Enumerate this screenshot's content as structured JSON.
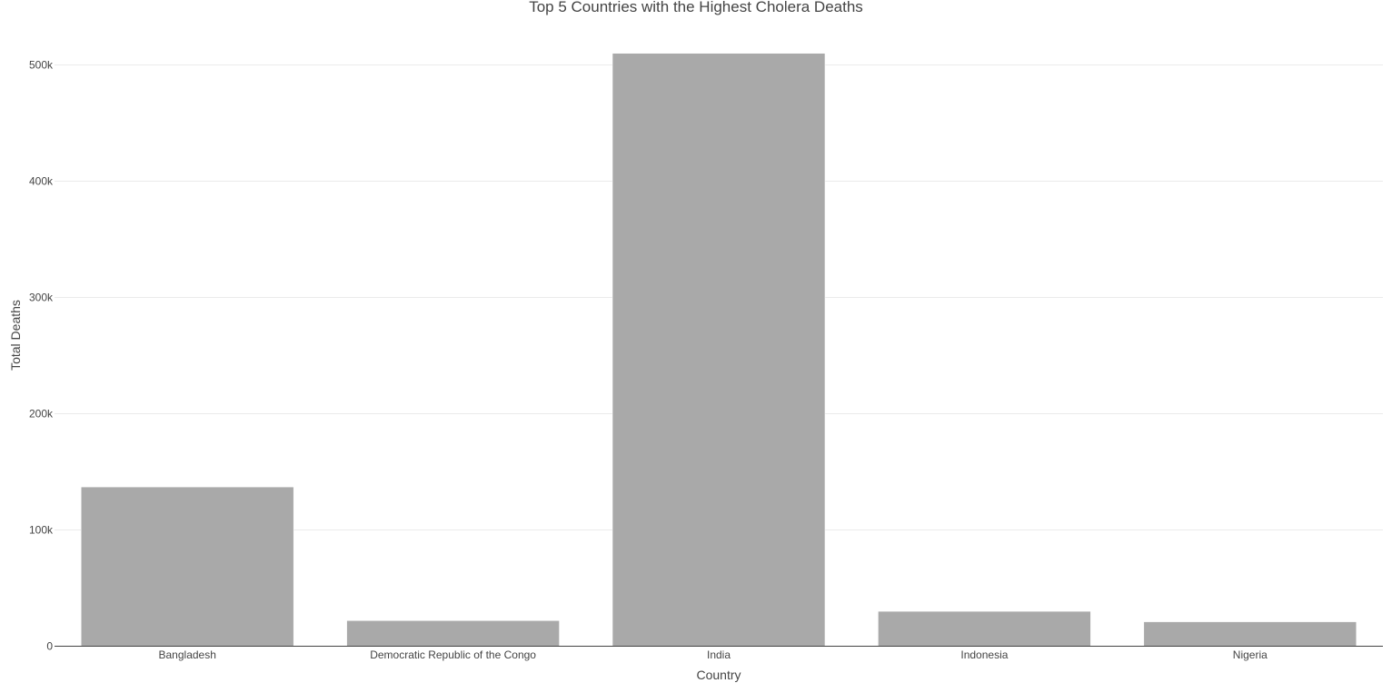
{
  "chart_data": {
    "type": "bar",
    "title": "Top 5 Countries with the Highest Cholera Deaths",
    "xlabel": "Country",
    "ylabel": "Total Deaths",
    "categories": [
      "Bangladesh",
      "Democratic Republic of the Congo",
      "India",
      "Indonesia",
      "Nigeria"
    ],
    "values": [
      137000,
      22000,
      510000,
      30000,
      21000
    ],
    "ylim": [
      0,
      525000
    ],
    "yticks": [
      0,
      100000,
      200000,
      300000,
      400000,
      500000
    ],
    "ytick_labels": [
      "0",
      "100k",
      "200k",
      "300k",
      "400k",
      "500k"
    ],
    "grid": true,
    "bar_color": "#a9a9a9"
  }
}
